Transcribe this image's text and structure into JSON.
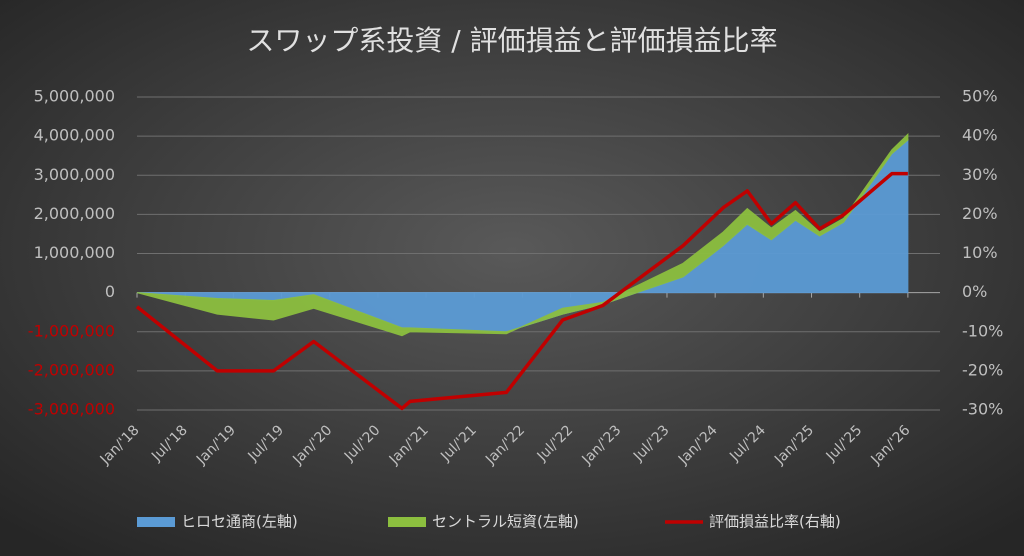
{
  "chart_data": {
    "type": "stacked_area_line",
    "title": "スワップ系投資 / 評価損益と評価損益比率",
    "x": [
      "2018-01",
      "2018-11",
      "2019-06",
      "2019-11",
      "2020-10",
      "2020-11",
      "2021-11",
      "2022-06",
      "2022-11",
      "2023-09",
      "2024-02",
      "2024-05",
      "2024-08",
      "2024-11",
      "2025-02",
      "2025-05",
      "2025-11",
      "2026-01"
    ],
    "series": [
      {
        "name": "ヒロセ通商(左軸)",
        "color": "#5b9bd5",
        "type": "area",
        "values": [
          0,
          -150000,
          -200000,
          -50000,
          -900000,
          -900000,
          -1000000,
          -550000,
          -300000,
          400000,
          1200000,
          1750000,
          1350000,
          1850000,
          1450000,
          1800000,
          3550000,
          3900000
        ]
      },
      {
        "name": "セントラル短資(左軸)",
        "color": "#8cbf3f",
        "type": "area",
        "values": [
          0,
          -400000,
          -500000,
          -350000,
          -200000,
          -100000,
          -50000,
          150000,
          50000,
          350000,
          350000,
          400000,
          300000,
          250000,
          100000,
          100000,
          100000,
          150000
        ]
      },
      {
        "name": "評価損益比率(右軸)",
        "color": "#c00000",
        "type": "line",
        "axis": "y2",
        "values": [
          -3.6,
          -20,
          -20,
          -12.5,
          -29.6,
          -27.8,
          -25.5,
          -7,
          -3.3,
          12,
          21.7,
          26,
          17.6,
          23,
          16.3,
          19.9,
          30.4,
          30.4
        ]
      }
    ],
    "xlim": [
      "2018-01",
      "2026-05"
    ],
    "xticks": [
      {
        "value": "2018-01",
        "label": "Jan/'18"
      },
      {
        "value": "2018-07",
        "label": "Jul/'18"
      },
      {
        "value": "2019-01",
        "label": "Jan/'19"
      },
      {
        "value": "2019-07",
        "label": "Jul/'19"
      },
      {
        "value": "2020-01",
        "label": "Jan/'20"
      },
      {
        "value": "2020-07",
        "label": "Jul/'20"
      },
      {
        "value": "2021-01",
        "label": "Jan/'21"
      },
      {
        "value": "2021-07",
        "label": "Jul/'21"
      },
      {
        "value": "2022-01",
        "label": "Jan/'22"
      },
      {
        "value": "2022-07",
        "label": "Jul/'22"
      },
      {
        "value": "2023-01",
        "label": "Jan/'23"
      },
      {
        "value": "2023-07",
        "label": "Jul/'23"
      },
      {
        "value": "2024-01",
        "label": "Jan/'24"
      },
      {
        "value": "2024-07",
        "label": "Jul/'24"
      },
      {
        "value": "2025-01",
        "label": "Jan/'25"
      },
      {
        "value": "2025-07",
        "label": "Jul/'25"
      },
      {
        "value": "2026-01",
        "label": "Jan/'26"
      }
    ],
    "ylim": [
      -3000000,
      5000000
    ],
    "yticks": [
      {
        "value": 5000000,
        "label": "5,000,000"
      },
      {
        "value": 4000000,
        "label": "4,000,000"
      },
      {
        "value": 3000000,
        "label": "3,000,000"
      },
      {
        "value": 2000000,
        "label": "2,000,000"
      },
      {
        "value": 1000000,
        "label": "1,000,000"
      },
      0,
      {
        "value": -1000000,
        "label": "-1,000,000"
      },
      {
        "value": -2000000,
        "label": "-2,000,000"
      },
      {
        "value": -3000000,
        "label": "-3,000,000"
      }
    ],
    "y2lim": [
      -30,
      50
    ],
    "y2ticks": [
      {
        "value": 50,
        "label": "50%"
      },
      {
        "value": 40,
        "label": "40%"
      },
      {
        "value": 30,
        "label": "30%"
      },
      {
        "value": 20,
        "label": "20%"
      },
      {
        "value": 10,
        "label": "10%"
      },
      {
        "value": 0,
        "label": "0%"
      },
      {
        "value": -10,
        "label": "-10%"
      },
      {
        "value": -20,
        "label": "-20%"
      },
      {
        "value": -30,
        "label": "-30%"
      }
    ],
    "negative_tick_color": "#c00000",
    "grid": true,
    "legend": "bottom"
  }
}
